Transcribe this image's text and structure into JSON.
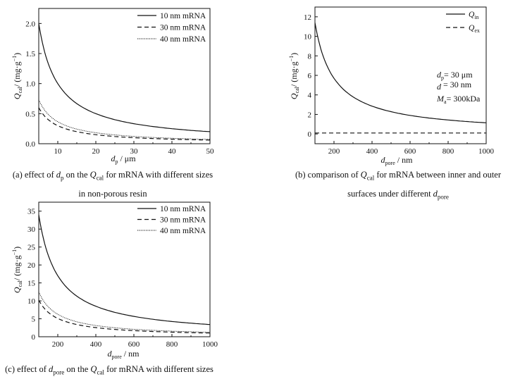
{
  "chart_data": [
    {
      "id": "a",
      "type": "line",
      "xlim": [
        5,
        50
      ],
      "ylim": [
        0,
        2.25
      ],
      "xticks": [
        10,
        20,
        30,
        40,
        50
      ],
      "xtick_labels": [
        "10",
        "20",
        "30",
        "40",
        "50"
      ],
      "yticks": [
        0,
        0.5,
        1.0,
        1.5,
        2.0
      ],
      "ytick_labels": [
        "0.0",
        "0.5",
        "1.0",
        "1.5",
        "2.0"
      ],
      "xlabel": {
        "main": "d",
        "sub": "p",
        "rest": " / μm"
      },
      "ylabel": {
        "main": "Q",
        "sub": "cal",
        "rest": "/ (mg·g",
        "sup": "−1",
        "end": ")"
      },
      "x": [
        5,
        7.5,
        10,
        15,
        20,
        25,
        30,
        35,
        40,
        45,
        50
      ],
      "series": [
        {
          "name": "10 nm mRNA",
          "style": "solid",
          "values": [
            2.0,
            1.333,
            1.0,
            0.667,
            0.5,
            0.4,
            0.333,
            0.286,
            0.25,
            0.222,
            0.2
          ]
        },
        {
          "name": "30 nm mRNA",
          "style": "dashed",
          "values": [
            0.6,
            0.4,
            0.3,
            0.2,
            0.15,
            0.12,
            0.1,
            0.086,
            0.075,
            0.067,
            0.06
          ]
        },
        {
          "name": "40 nm mRNA",
          "style": "dotted",
          "values": [
            0.73,
            0.487,
            0.365,
            0.243,
            0.183,
            0.146,
            0.122,
            0.104,
            0.091,
            0.081,
            0.073
          ]
        }
      ],
      "legend": "top-right"
    },
    {
      "id": "b",
      "type": "line",
      "xlim": [
        100,
        1000
      ],
      "ylim": [
        -1,
        13
      ],
      "xticks": [
        200,
        400,
        600,
        800,
        1000
      ],
      "xtick_labels": [
        "200",
        "400",
        "600",
        "800",
        "1000"
      ],
      "yticks": [
        0,
        2,
        4,
        6,
        8,
        10,
        12
      ],
      "ytick_labels": [
        "0",
        "2",
        "4",
        "6",
        "8",
        "10",
        "12"
      ],
      "xlabel": {
        "main": "d",
        "sub": "pore",
        "rest": " / nm"
      },
      "ylabel": {
        "main": "Q",
        "sub": "cal",
        "rest": "/ (mg·g",
        "sup": "−1",
        "end": ")"
      },
      "x": [
        100,
        150,
        200,
        300,
        400,
        500,
        600,
        700,
        800,
        900,
        1000
      ],
      "series": [
        {
          "name": "Q",
          "name_sub": "in",
          "style": "solid",
          "values": [
            11.4,
            7.6,
            5.7,
            3.8,
            2.85,
            2.28,
            1.9,
            1.63,
            1.43,
            1.27,
            1.14
          ]
        },
        {
          "name": "Q",
          "name_sub": "ex",
          "style": "dashed",
          "values": [
            0.1,
            0.1,
            0.1,
            0.1,
            0.1,
            0.1,
            0.1,
            0.1,
            0.1,
            0.1,
            0.1
          ]
        }
      ],
      "legend": "top-right",
      "annotations": [
        {
          "main": "d",
          "sub": "p",
          "rest": "= 30 μm"
        },
        {
          "main": "d",
          "sub": "",
          "rest": " = 30 nm"
        },
        {
          "main": "M",
          "sub": "a",
          "rest": "= 300kDa"
        }
      ]
    },
    {
      "id": "c",
      "type": "line",
      "xlim": [
        100,
        1000
      ],
      "ylim": [
        0,
        37.5
      ],
      "xticks": [
        200,
        400,
        600,
        800,
        1000
      ],
      "xtick_labels": [
        "200",
        "400",
        "600",
        "800",
        "1000"
      ],
      "yticks": [
        0,
        5,
        10,
        15,
        20,
        25,
        30,
        35
      ],
      "ytick_labels": [
        "0",
        "5",
        "10",
        "15",
        "20",
        "25",
        "30",
        "35"
      ],
      "xlabel": {
        "main": "d",
        "sub": "pore",
        "rest": " / nm"
      },
      "ylabel": {
        "main": "Q",
        "sub": "cal",
        "rest": "/ (mg·g",
        "sup": "−1",
        "end": ")"
      },
      "x": [
        100,
        150,
        200,
        300,
        400,
        500,
        600,
        700,
        800,
        900,
        1000
      ],
      "series": [
        {
          "name": "10 nm mRNA",
          "style": "solid",
          "values": [
            34,
            22.7,
            17,
            11.3,
            8.5,
            6.8,
            5.67,
            4.86,
            4.25,
            3.78,
            3.4
          ]
        },
        {
          "name": "30 nm mRNA",
          "style": "dashed",
          "values": [
            10.2,
            6.8,
            5.1,
            3.4,
            2.55,
            2.04,
            1.7,
            1.46,
            1.28,
            1.13,
            1.02
          ]
        },
        {
          "name": "40 nm mRNA",
          "style": "dotted",
          "values": [
            12.5,
            8.33,
            6.25,
            4.17,
            3.13,
            2.5,
            2.08,
            1.79,
            1.56,
            1.39,
            1.25
          ]
        }
      ],
      "legend": "top-right"
    }
  ],
  "captions": {
    "a": {
      "pre": "(a) effect of ",
      "d": "d",
      "dsub": "p",
      "mid": " on the ",
      "q": "Q",
      "qsub": "cal",
      "post": " for mRNA with different sizes",
      "line2": "in non-porous resin"
    },
    "b": {
      "pre": "(b) comparison of ",
      "q": "Q",
      "qsub": "cal",
      "post": " for mRNA between inner and outer",
      "line2pre": "surfaces under different ",
      "d": "d",
      "dsub": "pore"
    },
    "c": {
      "pre": "(c) effect of ",
      "d": "d",
      "dsub": "pore",
      "mid": " on the ",
      "q": "Q",
      "qsub": "cal",
      "post": " for mRNA with different sizes"
    }
  }
}
